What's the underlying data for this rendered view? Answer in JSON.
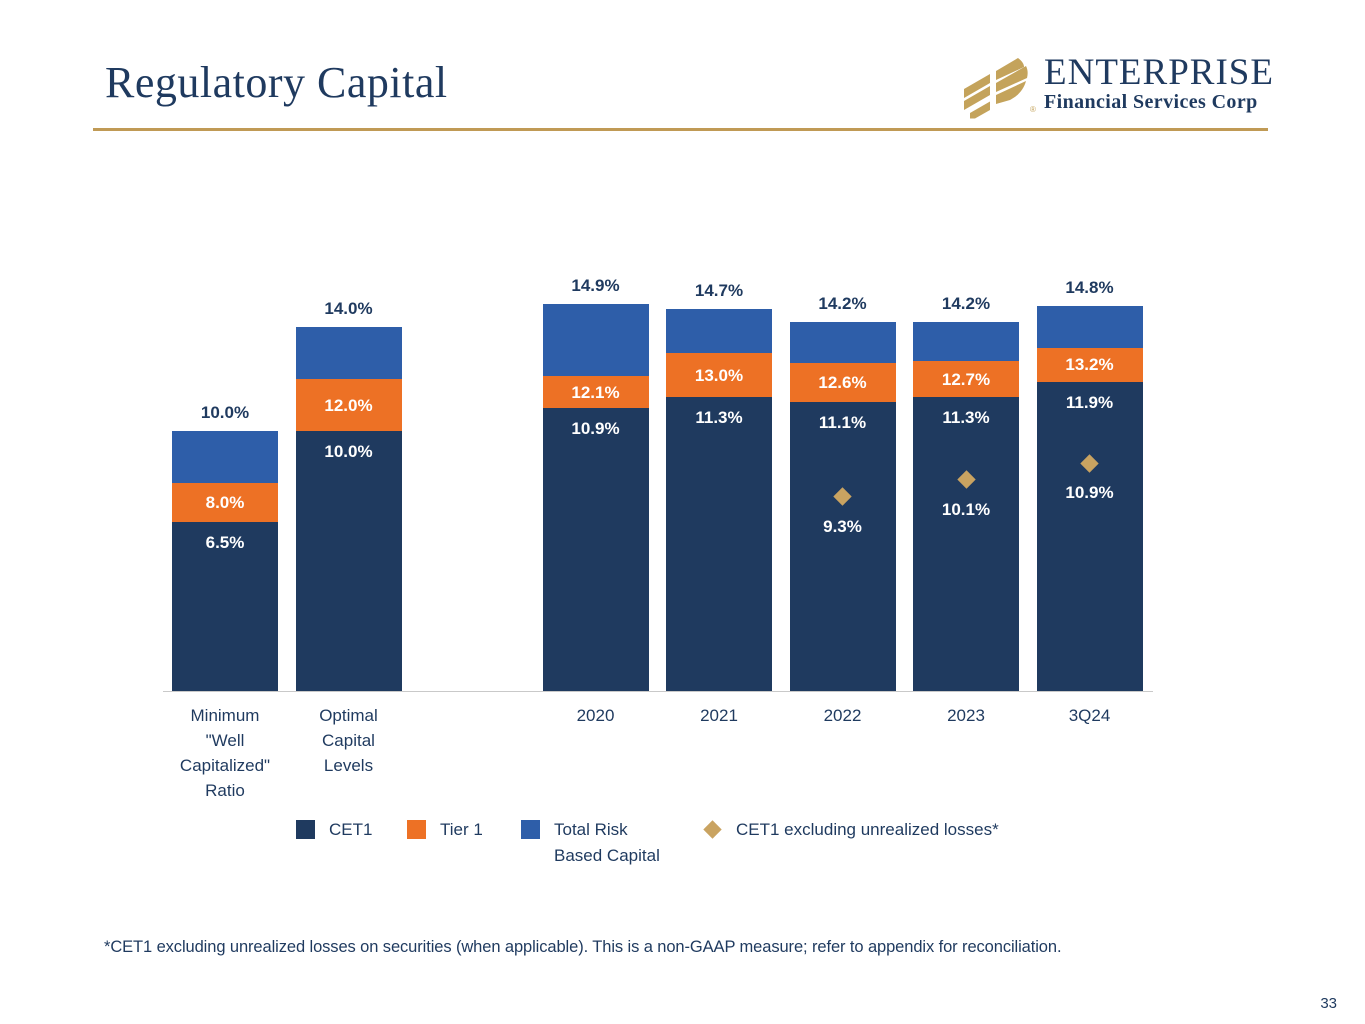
{
  "slide": {
    "title": "Regulatory Capital",
    "page_number": "33",
    "footnote": "*CET1 excluding unrealized losses on securities (when applicable). This is a non-GAAP measure; refer to appendix for reconciliation."
  },
  "logo": {
    "name": "ENTERPRISE",
    "subtitle": "Financial Services Corp",
    "registered_mark": "®"
  },
  "colors": {
    "navy": "#1F3A5F",
    "orange": "#ED7125",
    "blue": "#2E5EA9",
    "gold": "#C9A361",
    "rule_gold": "#C09A55",
    "logo_gold": "#C4A35B",
    "axis_gray": "#C9C9C9"
  },
  "chart_data": {
    "type": "bar",
    "stacked": true,
    "unit": "%",
    "ylim": [
      0,
      16
    ],
    "grid": false,
    "series_names": [
      "CET1",
      "Tier 1",
      "Total Risk Based Capital"
    ],
    "marker_series_name": "CET1 excluding unrealized losses*",
    "categories": [
      "Minimum \"Well Capitalized\" Ratio",
      "Optimal Capital Levels",
      "2020",
      "2021",
      "2022",
      "2023",
      "3Q24"
    ],
    "bars": [
      {
        "category": "Minimum\n\"Well\nCapitalized\"\nRatio",
        "slot": 0,
        "cet1": 6.5,
        "tier1": 8.0,
        "total": 10.0,
        "marker": null
      },
      {
        "category": "Optimal\nCapital\nLevels",
        "slot": 1,
        "cet1": 10.0,
        "tier1": 12.0,
        "total": 14.0,
        "marker": null
      },
      {
        "category": "2020",
        "slot": 3,
        "cet1": 10.9,
        "tier1": 12.1,
        "total": 14.9,
        "marker": null
      },
      {
        "category": "2021",
        "slot": 4,
        "cet1": 11.3,
        "tier1": 13.0,
        "total": 14.7,
        "marker": null
      },
      {
        "category": "2022",
        "slot": 5,
        "cet1": 11.1,
        "tier1": 12.6,
        "total": 14.2,
        "marker": 9.3
      },
      {
        "category": "2023",
        "slot": 6,
        "cet1": 11.3,
        "tier1": 12.7,
        "total": 14.2,
        "marker": 10.1
      },
      {
        "category": "3Q24",
        "slot": 7,
        "cet1": 11.9,
        "tier1": 13.2,
        "total": 14.8,
        "marker": 10.9
      }
    ],
    "legend": [
      {
        "label": "CET1",
        "swatch": "square",
        "color_key": "navy"
      },
      {
        "label": "Tier 1",
        "swatch": "square",
        "color_key": "orange"
      },
      {
        "label": "Total Risk\nBased Capital",
        "swatch": "square",
        "color_key": "blue"
      },
      {
        "label": "CET1 excluding unrealized losses*",
        "swatch": "diamond",
        "color_key": "gold"
      }
    ]
  }
}
